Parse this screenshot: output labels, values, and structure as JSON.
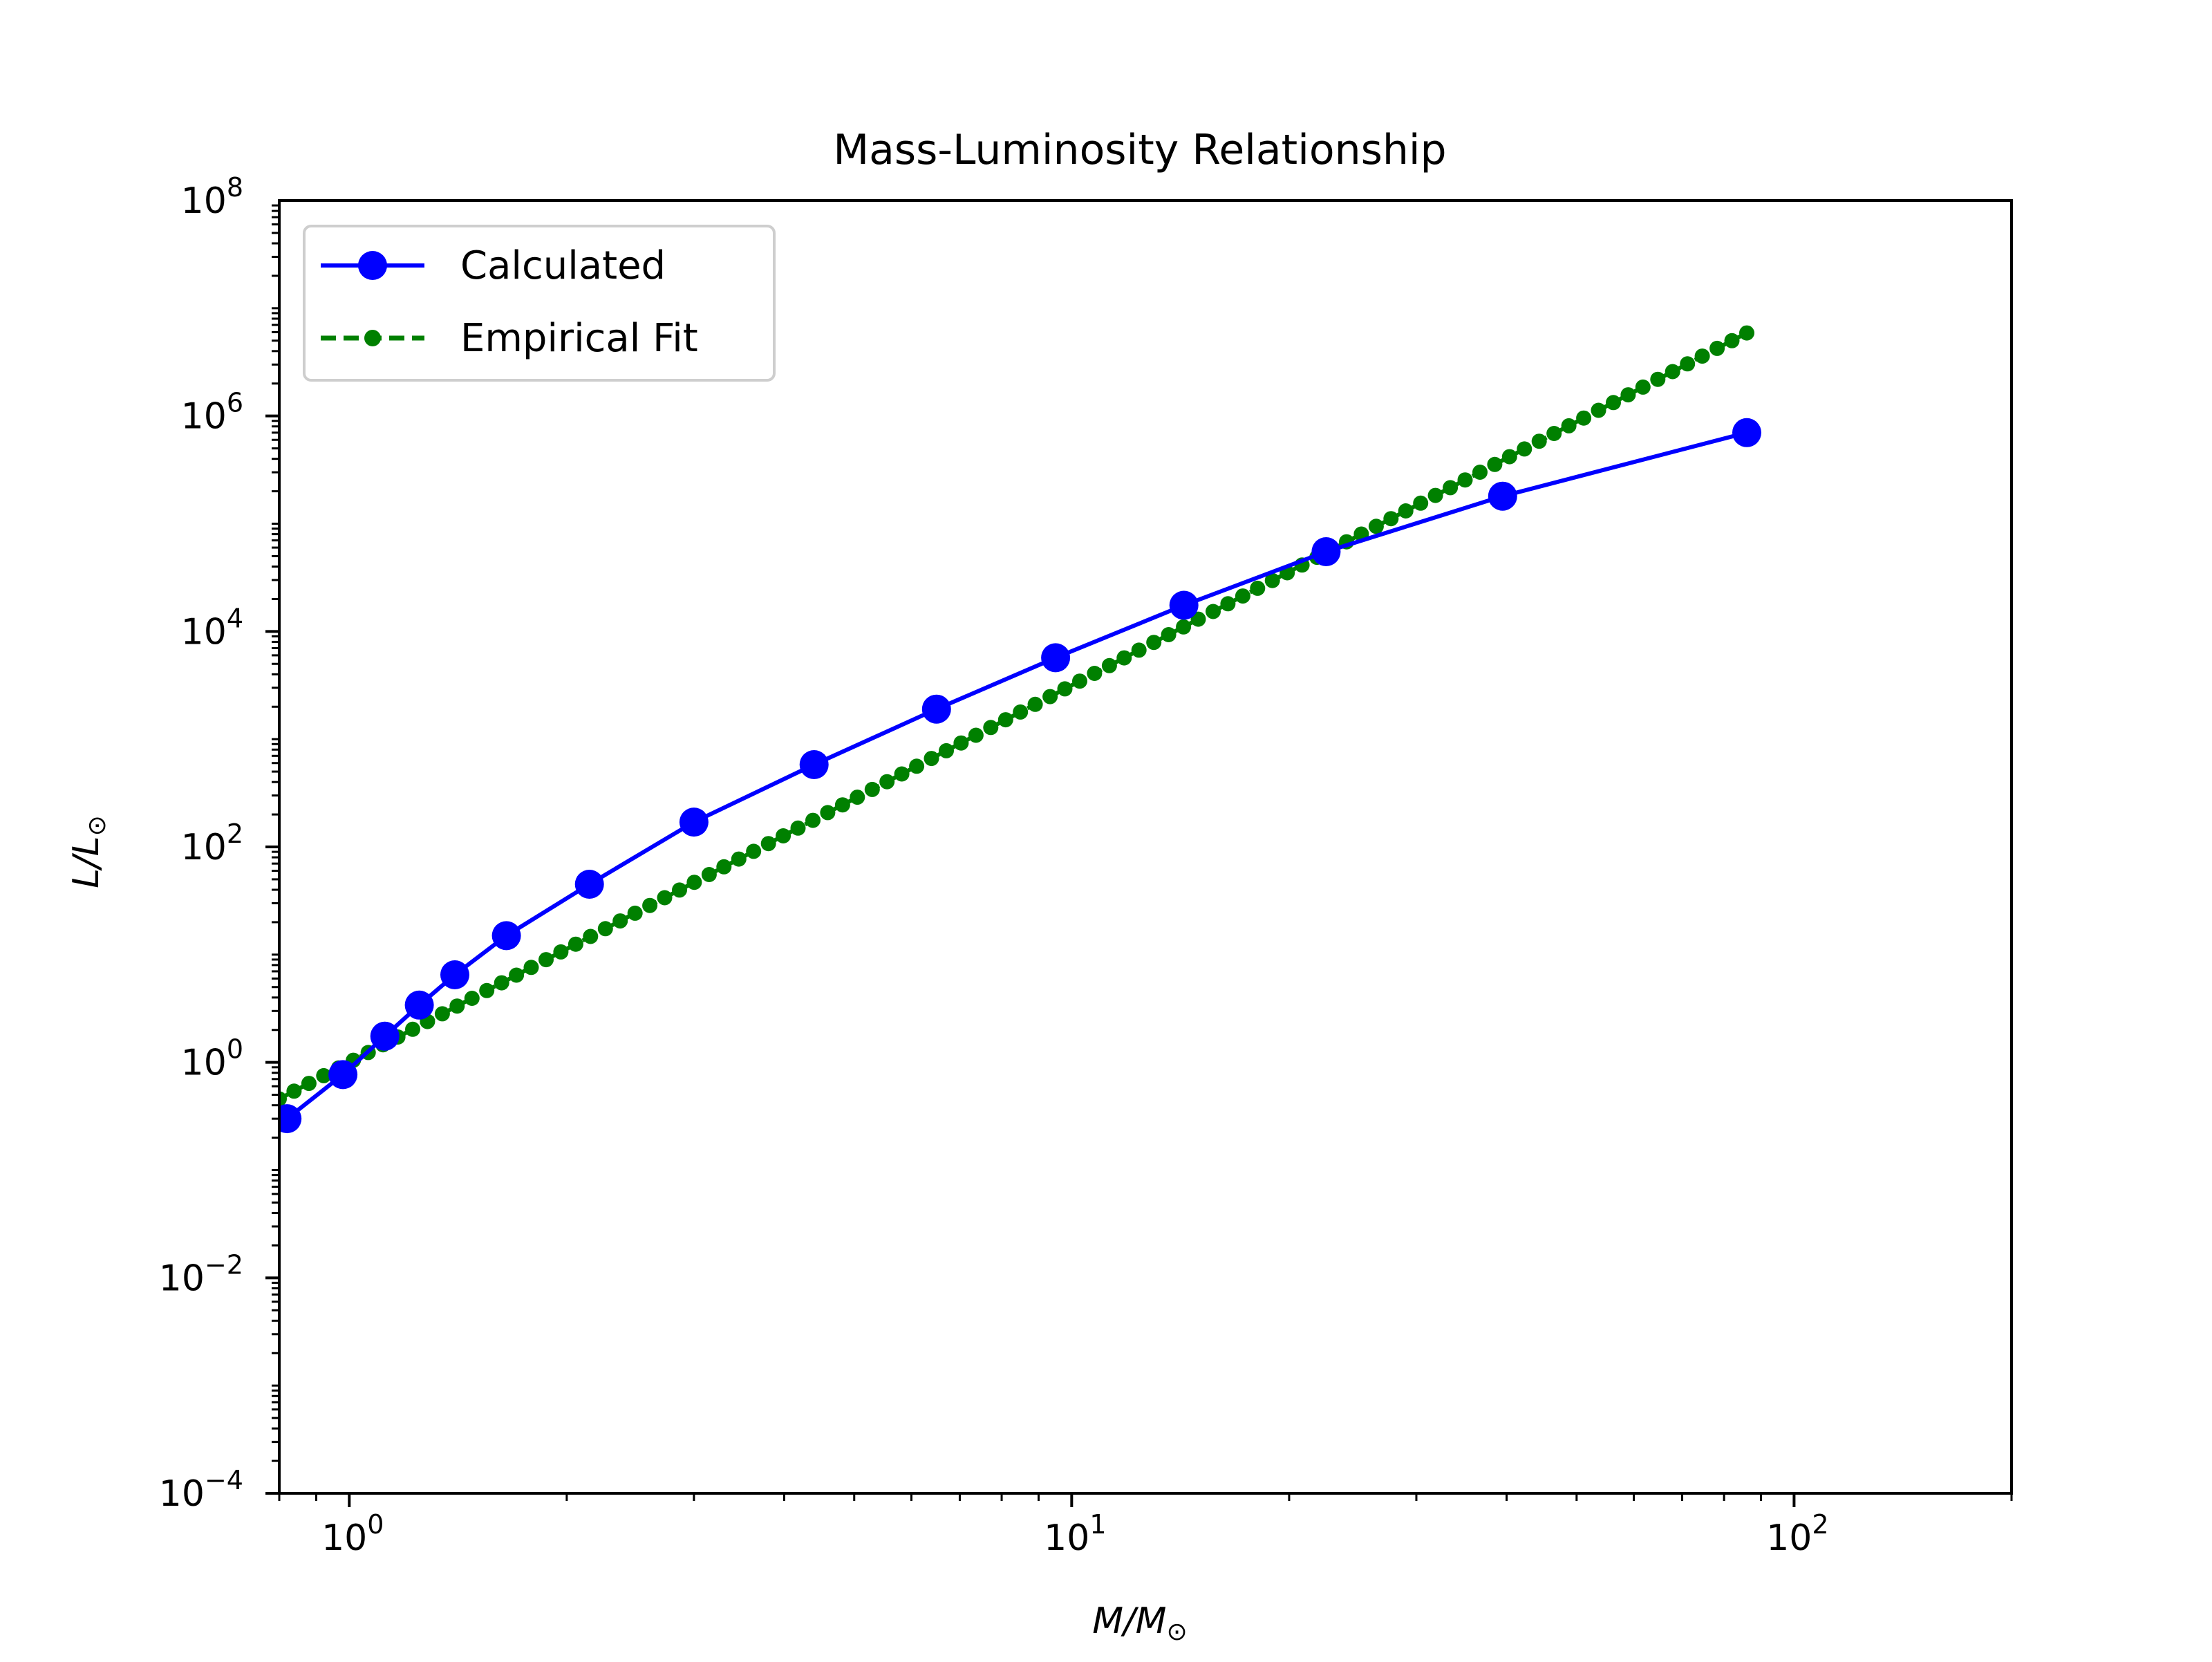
{
  "chart_data": {
    "type": "line",
    "title": "Mass-Luminosity Relationship",
    "xlabel": {
      "main": "M/M",
      "sub": "⊙"
    },
    "ylabel": {
      "main": "L/L",
      "sub": "⊙"
    },
    "xscale": "log",
    "yscale": "log",
    "xlim": [
      0.8,
      200
    ],
    "ylim": [
      0.0001,
      100000000
    ],
    "xticks": [
      {
        "value": 1,
        "base": "10",
        "exp": "0"
      },
      {
        "value": 10,
        "base": "10",
        "exp": "1"
      },
      {
        "value": 100,
        "base": "10",
        "exp": "2"
      }
    ],
    "yticks": [
      {
        "value": 0.0001,
        "base": "10",
        "exp": "−4"
      },
      {
        "value": 0.01,
        "base": "10",
        "exp": "−2"
      },
      {
        "value": 1,
        "base": "10",
        "exp": "0"
      },
      {
        "value": 100,
        "base": "10",
        "exp": "2"
      },
      {
        "value": 10000,
        "base": "10",
        "exp": "4"
      },
      {
        "value": 1000000,
        "base": "10",
        "exp": "6"
      },
      {
        "value": 100000000,
        "base": "10",
        "exp": "8"
      }
    ],
    "grid": false,
    "legend_position": "top-left",
    "series": [
      {
        "name": "Calculated",
        "color": "#0000ff",
        "style": "solid-line-circle-markers",
        "x": [
          0.82,
          0.98,
          1.12,
          1.25,
          1.4,
          1.65,
          2.15,
          3.0,
          4.4,
          6.5,
          9.5,
          14.3,
          22.5,
          39.5,
          86.0
        ],
        "y": [
          0.3,
          0.77,
          1.75,
          3.4,
          6.5,
          15.0,
          45.0,
          170,
          580,
          1900,
          5700,
          17500,
          55000,
          180000,
          700000
        ]
      },
      {
        "name": "Empirical Fit",
        "color": "#008000",
        "style": "dashed-line-dot-markers",
        "fit": {
          "form": "L = M^3.5",
          "x_min": 0.8,
          "x_max": 86.0,
          "points": 100
        }
      }
    ]
  }
}
